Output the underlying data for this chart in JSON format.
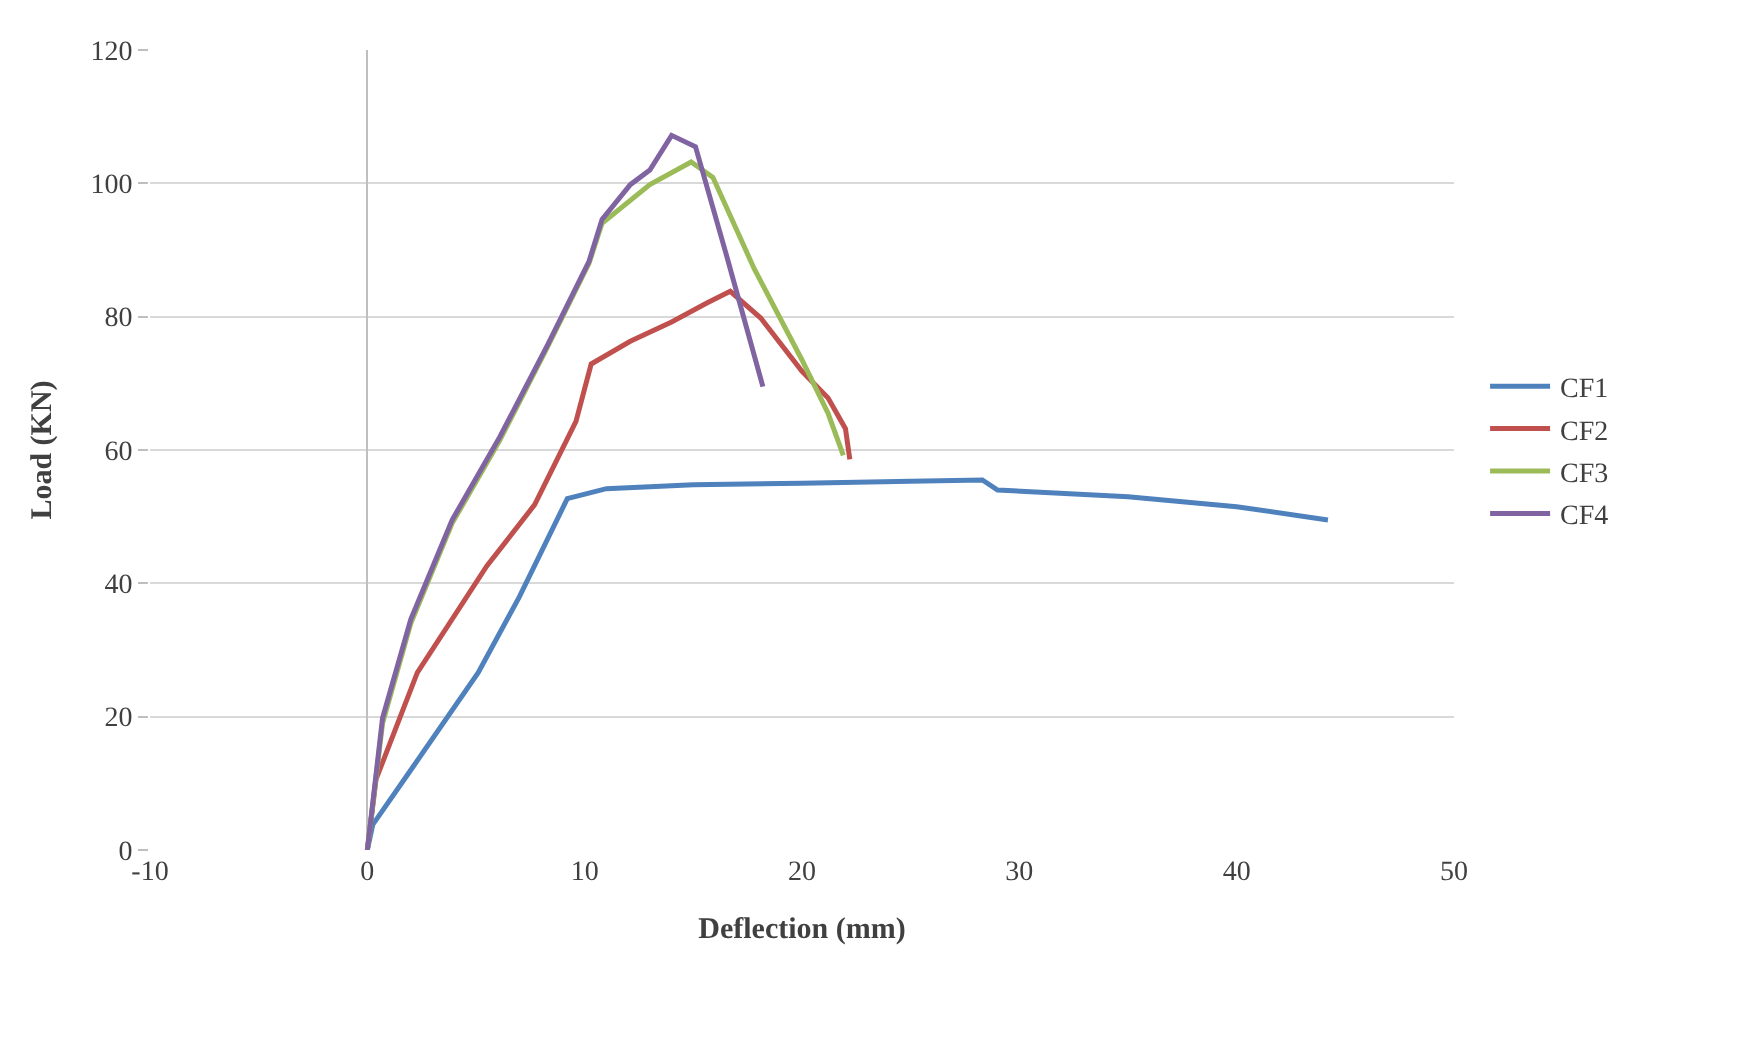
{
  "chart_data": {
    "type": "line",
    "xlabel": "Deflection (mm)",
    "ylabel": "Load (KN)",
    "xlim": [
      -10,
      50
    ],
    "xticks": [
      -10,
      0,
      10,
      20,
      30,
      40,
      50
    ],
    "ylim": [
      0,
      120
    ],
    "yticks": [
      0,
      20,
      40,
      60,
      80,
      100,
      120
    ],
    "grid": "y",
    "legend": "right",
    "marker": "none",
    "line_style": "solid",
    "series": [
      {
        "name": "CF1",
        "color": "#4f81bd",
        "x": [
          0,
          0.25,
          2,
          5.1,
          7,
          9.2,
          11,
          15,
          20,
          25,
          28.3,
          29,
          35,
          40,
          44.2
        ],
        "values": [
          0,
          3.8,
          12,
          26.6,
          38,
          52.7,
          54.2,
          54.8,
          55,
          55.3,
          55.5,
          54,
          53,
          51.5,
          49.5
        ]
      },
      {
        "name": "CF2",
        "color": "#c0504d",
        "x": [
          0,
          0.4,
          2.3,
          5.5,
          7.7,
          9.6,
          10.3,
          12.1,
          14,
          15.6,
          16.7,
          18.1,
          20,
          21.2,
          22,
          22.2
        ],
        "values": [
          0,
          10.6,
          26.6,
          42.6,
          51.8,
          64.3,
          72.9,
          76.3,
          79.2,
          82,
          83.8,
          79.8,
          71.8,
          67.8,
          63.2,
          58.6
        ]
      },
      {
        "name": "CF3",
        "color": "#9bbb59",
        "x": [
          0,
          0.7,
          2,
          3.9,
          6.1,
          8.3,
          10.2,
          10.8,
          13,
          14.9,
          15.9,
          17.8,
          20,
          21.2,
          21.9
        ],
        "values": [
          0,
          19,
          34,
          49,
          61.5,
          75.5,
          88,
          94,
          99.8,
          103.2,
          100.9,
          87.2,
          73.5,
          65.5,
          59.2
        ]
      },
      {
        "name": "CF4",
        "color": "#8064a2",
        "x": [
          0,
          0.7,
          2,
          3.9,
          6.1,
          8.3,
          10.2,
          10.8,
          12.1,
          13,
          14,
          15.1,
          16.5,
          18.2
        ],
        "values": [
          0,
          19.8,
          34.6,
          49.5,
          62,
          75.8,
          88.3,
          94.6,
          99.8,
          102,
          107.2,
          105.5,
          89.5,
          69.5
        ]
      }
    ]
  }
}
